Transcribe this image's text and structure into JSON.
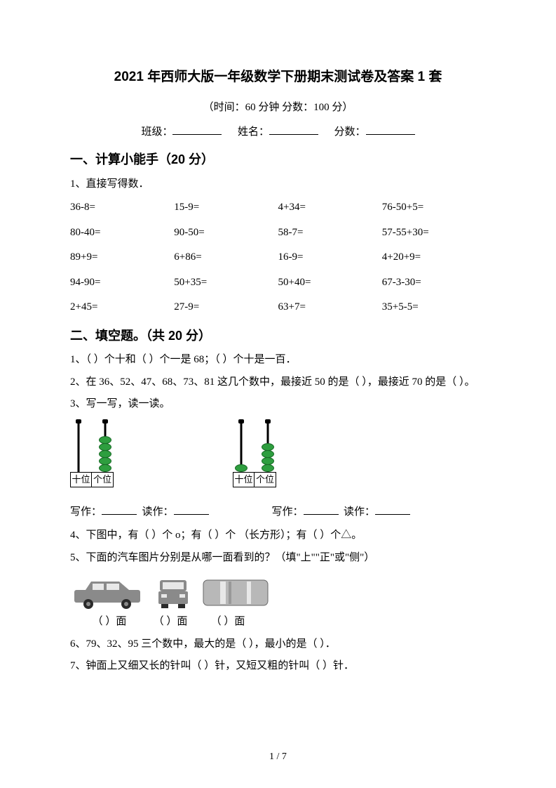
{
  "title": "2021 年西师大版一年级数学下册期末测试卷及答案 1 套",
  "subtitle_time_label": "（时间：",
  "subtitle_time_value": "60 分钟",
  "subtitle_score_label": "    分数：",
  "subtitle_score_value": "100 分）",
  "info": {
    "class_label": "班级：",
    "name_label": "姓名：",
    "score_label": "分数："
  },
  "section1": {
    "header": "一、计算小能手（20 分）",
    "q1_label": "1、直接写得数．",
    "rows": [
      [
        "36-8=",
        "15-9=",
        "4+34=",
        "76-50+5="
      ],
      [
        "80-40=",
        "90-50=",
        "58-7=",
        "57-55+30="
      ],
      [
        "89+9=",
        "6+86=",
        "16-9=",
        "4+20+9="
      ],
      [
        "94-90=",
        "50+35=",
        "50+40=",
        "67-3-30="
      ],
      [
        "2+45=",
        "27-9=",
        "63+7=",
        "35+5-5="
      ]
    ]
  },
  "section2": {
    "header": "二、填空题。（共 20 分）",
    "q1": "1、（        ）个十和（        ）个一是 68；（        ）个十是一百．",
    "q2": "2、在 36、52、47、68、73、81 这几个数中，最接近 50 的是（        ），最接近 70 的是（        ）。",
    "q3_label": "3、写一写，读一读。",
    "abacus1": {
      "tens_beads": 0,
      "ones_beads": 5,
      "bead_color": "#2e9e3f",
      "tens_label": "十位",
      "ones_label": "个位"
    },
    "abacus2": {
      "tens_beads": 1,
      "ones_beads": 4,
      "bead_color": "#2e9e3f",
      "tens_label": "十位",
      "ones_label": "个位"
    },
    "write_label": "写作：",
    "read_label": "读作：",
    "q4": "4、下图中，有（        ）个 o；有（        ）个 （长方形）；有（        ）个△。",
    "q5": "5、下面的汽车图片分别是从哪一面看到的？（填\"上\"\"正\"或\"侧\"）",
    "car_colors": {
      "body": "#8a8a8a",
      "body_light": "#b8b8b8",
      "wheel": "#2a2a2a",
      "window": "#e8e8e8"
    },
    "view_label_a": "（        ）面",
    "view_label_b": "（        ）面",
    "view_label_c": "（        ）面",
    "q6": "6、79、32、95 三个数中，最大的是（        ），最小的是（        ）．",
    "q7": "7、钟面上又细又长的针叫（        ）针，又短又粗的针叫（        ）针．"
  },
  "page_num": "1 / 7"
}
